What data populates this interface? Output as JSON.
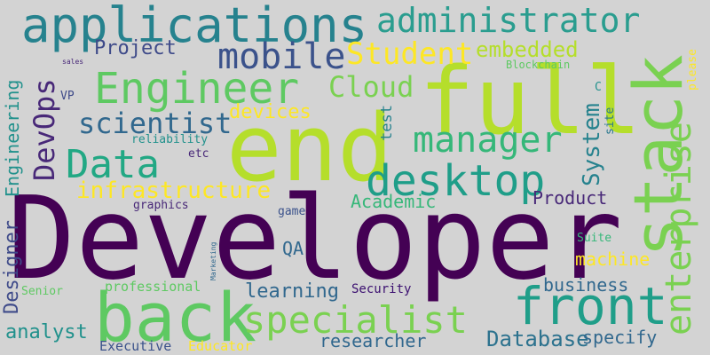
{
  "words": [
    {
      "id": "w-developer",
      "text": "Developer",
      "color": "#440154"
    },
    {
      "id": "w-end",
      "text": "end",
      "color": "#b5de2b"
    },
    {
      "id": "w-full",
      "text": "full",
      "color": "#b5de2b"
    },
    {
      "id": "w-stack",
      "text": "stack",
      "color": "#7ad151"
    },
    {
      "id": "w-back",
      "text": "back",
      "color": "#5ec962"
    },
    {
      "id": "w-front",
      "text": "front",
      "color": "#1f9e89"
    },
    {
      "id": "w-applications",
      "text": "applications",
      "color": "#26828e"
    },
    {
      "id": "w-administrator",
      "text": "administrator",
      "color": "#2a9d8f"
    },
    {
      "id": "w-engineer",
      "text": "Engineer",
      "color": "#5ec962"
    },
    {
      "id": "w-mobile",
      "text": "mobile",
      "color": "#3b528b"
    },
    {
      "id": "w-student",
      "text": "Student",
      "color": "#fde725"
    },
    {
      "id": "w-manager",
      "text": "manager",
      "color": "#35b779"
    },
    {
      "id": "w-data",
      "text": "Data",
      "color": "#22a884"
    },
    {
      "id": "w-desktop",
      "text": "desktop",
      "color": "#1f9e89"
    },
    {
      "id": "w-specialist",
      "text": "specialist",
      "color": "#7ad151"
    },
    {
      "id": "w-enterprise",
      "text": "enterprise",
      "color": "#7ad151"
    },
    {
      "id": "w-cloud",
      "text": "Cloud",
      "color": "#7ad151"
    },
    {
      "id": "w-scientist",
      "text": "scientist",
      "color": "#31688e"
    },
    {
      "id": "w-devops",
      "text": "DevOps",
      "color": "#482878"
    },
    {
      "id": "w-infrastructure",
      "text": "infrastructure",
      "color": "#fde725"
    },
    {
      "id": "w-project",
      "text": "Project",
      "color": "#3e4a89"
    },
    {
      "id": "w-embedded",
      "text": "embedded",
      "color": "#b5de2b"
    },
    {
      "id": "w-devices",
      "text": "devices",
      "color": "#fde725"
    },
    {
      "id": "w-system",
      "text": "System",
      "color": "#26828e"
    },
    {
      "id": "w-database",
      "text": "Database",
      "color": "#2c728e"
    },
    {
      "id": "w-learning",
      "text": "learning",
      "color": "#31688e"
    },
    {
      "id": "w-designer",
      "text": "Designer",
      "color": "#3e4a89"
    },
    {
      "id": "w-engineering",
      "text": "Engineering",
      "color": "#21918c"
    },
    {
      "id": "w-researcher",
      "text": "researcher",
      "color": "#31688e"
    },
    {
      "id": "w-business",
      "text": "business",
      "color": "#31688e"
    },
    {
      "id": "w-academic",
      "text": "Academic",
      "color": "#35b779"
    },
    {
      "id": "w-product",
      "text": "Product",
      "color": "#482878"
    },
    {
      "id": "w-machine",
      "text": "machine",
      "color": "#fde725"
    },
    {
      "id": "w-analyst",
      "text": "analyst",
      "color": "#21918c"
    },
    {
      "id": "w-specify",
      "text": "specify",
      "color": "#31688e"
    },
    {
      "id": "w-professional",
      "text": "professional",
      "color": "#5ec962"
    },
    {
      "id": "w-qa",
      "text": "QA",
      "color": "#31688e"
    },
    {
      "id": "w-test",
      "text": "test",
      "color": "#26828e"
    },
    {
      "id": "w-executive",
      "text": "Executive",
      "color": "#3b528b"
    },
    {
      "id": "w-educator",
      "text": "Educator",
      "color": "#fde725"
    },
    {
      "id": "w-security",
      "text": "Security",
      "color": "#3b0f70"
    },
    {
      "id": "w-senior",
      "text": "Senior",
      "color": "#5ec962"
    },
    {
      "id": "w-graphics",
      "text": "graphics",
      "color": "#482878"
    },
    {
      "id": "w-game",
      "text": "game",
      "color": "#3b528b"
    },
    {
      "id": "w-suite",
      "text": "Suite",
      "color": "#35b779"
    },
    {
      "id": "w-reliability",
      "text": "reliability",
      "color": "#21918c"
    },
    {
      "id": "w-etc",
      "text": "etc",
      "color": "#482878"
    },
    {
      "id": "w-vp",
      "text": "VP",
      "color": "#3e4a89"
    },
    {
      "id": "w-blockchain",
      "text": "Blockchain",
      "color": "#5ec962"
    },
    {
      "id": "w-please",
      "text": "please",
      "color": "#fde725"
    },
    {
      "id": "w-site",
      "text": "site",
      "color": "#2a788e"
    },
    {
      "id": "w-c",
      "text": "C",
      "color": "#21918c"
    },
    {
      "id": "w-sales",
      "text": "sales",
      "color": "#482878"
    },
    {
      "id": "w-marketing",
      "text": "Marketing",
      "color": "#31688e"
    }
  ]
}
